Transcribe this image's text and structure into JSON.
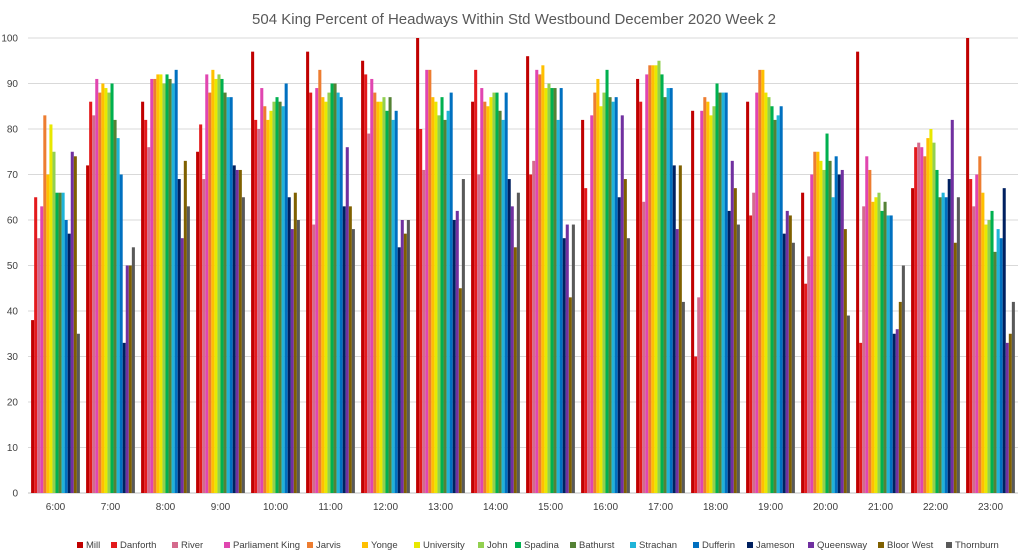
{
  "chart_data": {
    "type": "bar",
    "title": "504 King  Percent of Headways Within Std Westbound December 2020 Week 2",
    "xlabel": "",
    "ylabel": "",
    "ylim": [
      0,
      100
    ],
    "yticks": [
      0,
      10,
      20,
      30,
      40,
      50,
      60,
      70,
      80,
      90,
      100
    ],
    "grid": true,
    "legend_position": "bottom",
    "categories": [
      "6:00",
      "7:00",
      "8:00",
      "9:00",
      "10:00",
      "11:00",
      "12:00",
      "13:00",
      "14:00",
      "15:00",
      "16:00",
      "17:00",
      "18:00",
      "19:00",
      "20:00",
      "21:00",
      "22:00",
      "23:00"
    ],
    "series": [
      {
        "name": "Mill",
        "color": "#c00000",
        "values": [
          38,
          72,
          86,
          75,
          97,
          97,
          95,
          100,
          86,
          96,
          82,
          91,
          84,
          86,
          66,
          97,
          67,
          100
        ]
      },
      {
        "name": "Danforth",
        "color": "#e31a1c",
        "values": [
          65,
          86,
          82,
          81,
          82,
          88,
          92,
          80,
          93,
          70,
          67,
          86,
          30,
          61,
          46,
          33,
          76,
          69
        ]
      },
      {
        "name": "River",
        "color": "#d46a8c",
        "values": [
          56,
          83,
          76,
          69,
          80,
          59,
          79,
          71,
          70,
          73,
          60,
          64,
          43,
          66,
          52,
          63,
          77,
          63
        ]
      },
      {
        "name": "Parliament King",
        "color": "#e046b0",
        "values": [
          63,
          91,
          91,
          92,
          89,
          89,
          91,
          93,
          89,
          93,
          83,
          92,
          84,
          88,
          70,
          74,
          76,
          70
        ]
      },
      {
        "name": "Jarvis",
        "color": "#ed7d31",
        "values": [
          83,
          88,
          91,
          88,
          85,
          93,
          88,
          93,
          86,
          92,
          88,
          94,
          87,
          93,
          75,
          71,
          74,
          74
        ]
      },
      {
        "name": "Yonge",
        "color": "#ffc000",
        "values": [
          70,
          90,
          92,
          93,
          82,
          87,
          86,
          87,
          85,
          94,
          91,
          94,
          86,
          93,
          75,
          64,
          78,
          66
        ]
      },
      {
        "name": "University",
        "color": "#e8e800",
        "values": [
          81,
          89,
          92,
          91,
          84,
          86,
          86,
          86,
          87,
          89,
          85,
          94,
          83,
          88,
          73,
          65,
          80,
          59
        ]
      },
      {
        "name": "John",
        "color": "#92d050",
        "values": [
          75,
          88,
          90,
          92,
          86,
          88,
          87,
          83,
          88,
          90,
          88,
          95,
          85,
          87,
          71,
          66,
          77,
          60
        ]
      },
      {
        "name": "Spadina",
        "color": "#00b050",
        "values": [
          66,
          90,
          92,
          91,
          87,
          90,
          84,
          87,
          88,
          89,
          93,
          92,
          90,
          85,
          79,
          62,
          71,
          62
        ]
      },
      {
        "name": "Bathurst",
        "color": "#548235",
        "values": [
          66,
          82,
          91,
          88,
          86,
          90,
          87,
          82,
          84,
          89,
          87,
          87,
          88,
          82,
          73,
          64,
          65,
          53
        ]
      },
      {
        "name": "Strachan",
        "color": "#1fb4d8",
        "values": [
          66,
          78,
          90,
          87,
          85,
          88,
          82,
          84,
          82,
          82,
          86,
          89,
          88,
          83,
          65,
          61,
          66,
          58
        ]
      },
      {
        "name": "Dufferin",
        "color": "#0070c0",
        "values": [
          60,
          70,
          93,
          87,
          90,
          87,
          84,
          88,
          88,
          89,
          87,
          89,
          88,
          85,
          74,
          61,
          65,
          56
        ]
      },
      {
        "name": "Jameson",
        "color": "#002060",
        "values": [
          57,
          33,
          69,
          72,
          65,
          63,
          54,
          60,
          69,
          56,
          65,
          72,
          62,
          57,
          70,
          35,
          69,
          67
        ]
      },
      {
        "name": "Queensway",
        "color": "#7030a0",
        "values": [
          75,
          50,
          56,
          71,
          58,
          76,
          60,
          62,
          63,
          59,
          83,
          58,
          73,
          62,
          71,
          36,
          82,
          33
        ]
      },
      {
        "name": "Bloor West",
        "color": "#7f6000",
        "values": [
          74,
          50,
          73,
          71,
          66,
          63,
          57,
          45,
          54,
          43,
          69,
          72,
          67,
          61,
          58,
          42,
          55,
          35
        ]
      },
      {
        "name": "Thornburn",
        "color": "#595959",
        "values": [
          35,
          54,
          63,
          65,
          60,
          58,
          60,
          69,
          66,
          59,
          56,
          42,
          59,
          55,
          39,
          50,
          65,
          42
        ]
      }
    ]
  }
}
